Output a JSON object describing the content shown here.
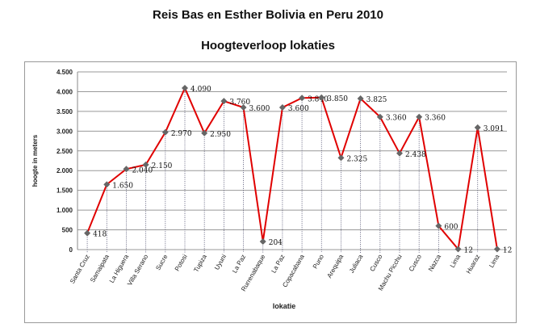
{
  "chart_data": {
    "type": "line",
    "title": "Reis Bas en Esther Bolivia en Peru 2010",
    "subtitle": "Hoogteverloop lokaties",
    "xlabel": "lokatie",
    "ylabel": "hoogte in meters",
    "ylim": [
      0,
      4500
    ],
    "yticks": [
      0,
      500,
      1000,
      1500,
      2000,
      2500,
      3000,
      3500,
      4000,
      4500
    ],
    "ytick_labels": [
      "0",
      "500",
      "1.000",
      "1.500",
      "2.000",
      "2.500",
      "3.000",
      "3.500",
      "4.000",
      "4.500"
    ],
    "grid": true,
    "categories": [
      "Santa Cruz",
      "Samaipata",
      "La Higuera",
      "Villa Serano",
      "Sucre",
      "Potosi",
      "Tupiza",
      "Uyuni",
      "La Paz",
      "Rurrenabaque",
      "La Paz",
      "Copacabana",
      "Puno",
      "Arequipa",
      "Juliaca",
      "Cusco",
      "Machu Picchu",
      "Cusco",
      "Nazca",
      "Lima",
      "Huaraz",
      "Lima"
    ],
    "values": [
      418,
      1650,
      2040,
      2150,
      2970,
      4090,
      2950,
      3760,
      3600,
      204,
      3600,
      3840,
      3850,
      2325,
      3825,
      3360,
      2438,
      3360,
      600,
      12,
      3091,
      12
    ],
    "data_labels": [
      "418",
      "1.650",
      "2.040",
      "2.150",
      "2.970",
      "4.090",
      "2.950",
      "3.760",
      "3.600",
      "204",
      "3.600",
      "3.840",
      "3.850",
      "2.325",
      "3.825",
      "3.360",
      "2.438",
      "3.360",
      "600",
      "12",
      "3.091",
      "12"
    ],
    "line_color": "#e00000",
    "marker_color": "#666666"
  }
}
